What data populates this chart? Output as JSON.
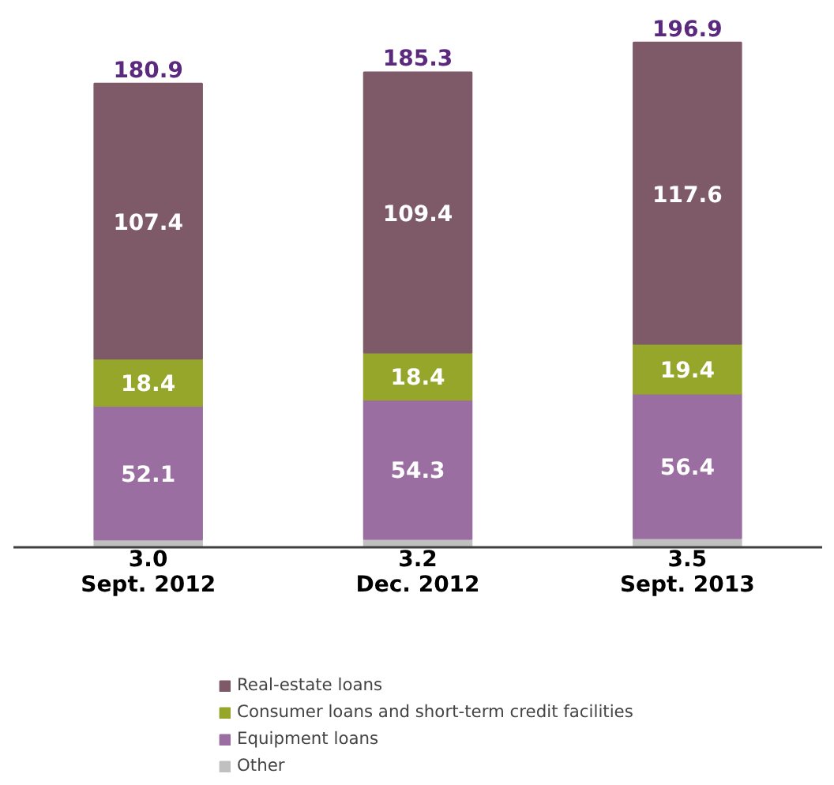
{
  "chart_data": {
    "type": "bar",
    "stacked": true,
    "data_labels": true,
    "legend": "bottom",
    "categories": [
      "Sept. 2012",
      "Dec. 2012",
      "Sept. 2013"
    ],
    "series": [
      {
        "name": "Other",
        "color": "#c0c0c0",
        "values": [
          3.0,
          3.2,
          3.5
        ],
        "value_labels": [
          "3.0",
          "3.2",
          "3.5"
        ]
      },
      {
        "name": "Equipment loans",
        "color": "#9a6ea0",
        "values": [
          52.1,
          54.3,
          56.4
        ]
      },
      {
        "name": "Consumer loans and short-term credit facilities",
        "color": "#95a62a",
        "values": [
          18.4,
          18.4,
          19.4
        ]
      },
      {
        "name": "Real-estate loans",
        "color": "#7e5a68",
        "values": [
          107.4,
          109.4,
          117.6
        ]
      }
    ],
    "totals": [
      "180.9",
      "185.3",
      "196.9"
    ]
  }
}
